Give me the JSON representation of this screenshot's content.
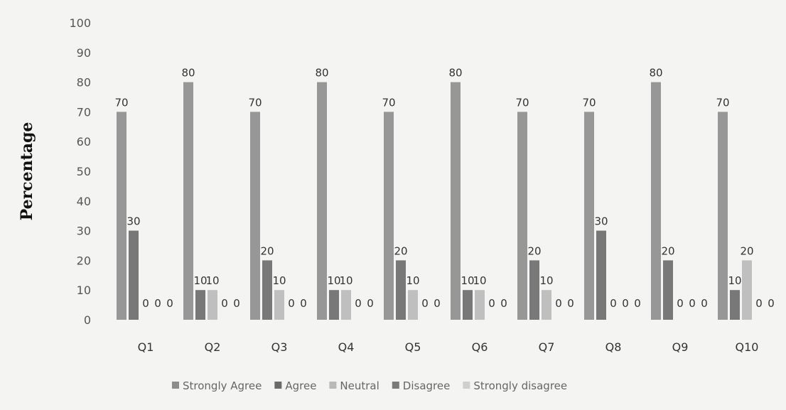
{
  "chart_data": {
    "type": "bar",
    "title": "",
    "xlabel": "",
    "ylabel": "Percentage",
    "ylim": [
      0,
      100
    ],
    "yticks": [
      "0",
      "10",
      "20",
      "30",
      "40",
      "50",
      "60",
      "70",
      "80",
      "90",
      "100"
    ],
    "categories": [
      "Q1",
      "Q2",
      "Q3",
      "Q4",
      "Q5",
      "Q6",
      "Q7",
      "Q8",
      "Q9",
      "Q10"
    ],
    "series": [
      {
        "name": "Strongly Agree",
        "color": "#8d8d8d",
        "values": [
          70,
          80,
          70,
          80,
          70,
          80,
          70,
          70,
          80,
          70
        ]
      },
      {
        "name": "Agree",
        "color": "#6a6a6a",
        "values": [
          30,
          10,
          20,
          10,
          20,
          10,
          20,
          30,
          20,
          10
        ]
      },
      {
        "name": "Neutral",
        "color": "#b9b9b9",
        "values": [
          0,
          10,
          10,
          10,
          10,
          10,
          10,
          0,
          0,
          20
        ]
      },
      {
        "name": "Disagree",
        "color": "#7a7a7a",
        "values": [
          0,
          0,
          0,
          0,
          0,
          0,
          0,
          0,
          0,
          0
        ]
      },
      {
        "name": "Strongly disagree",
        "color": "#cfcfcf",
        "values": [
          0,
          0,
          0,
          0,
          0,
          0,
          0,
          0,
          0,
          0
        ]
      }
    ],
    "grid": false,
    "legend": "bottom"
  }
}
